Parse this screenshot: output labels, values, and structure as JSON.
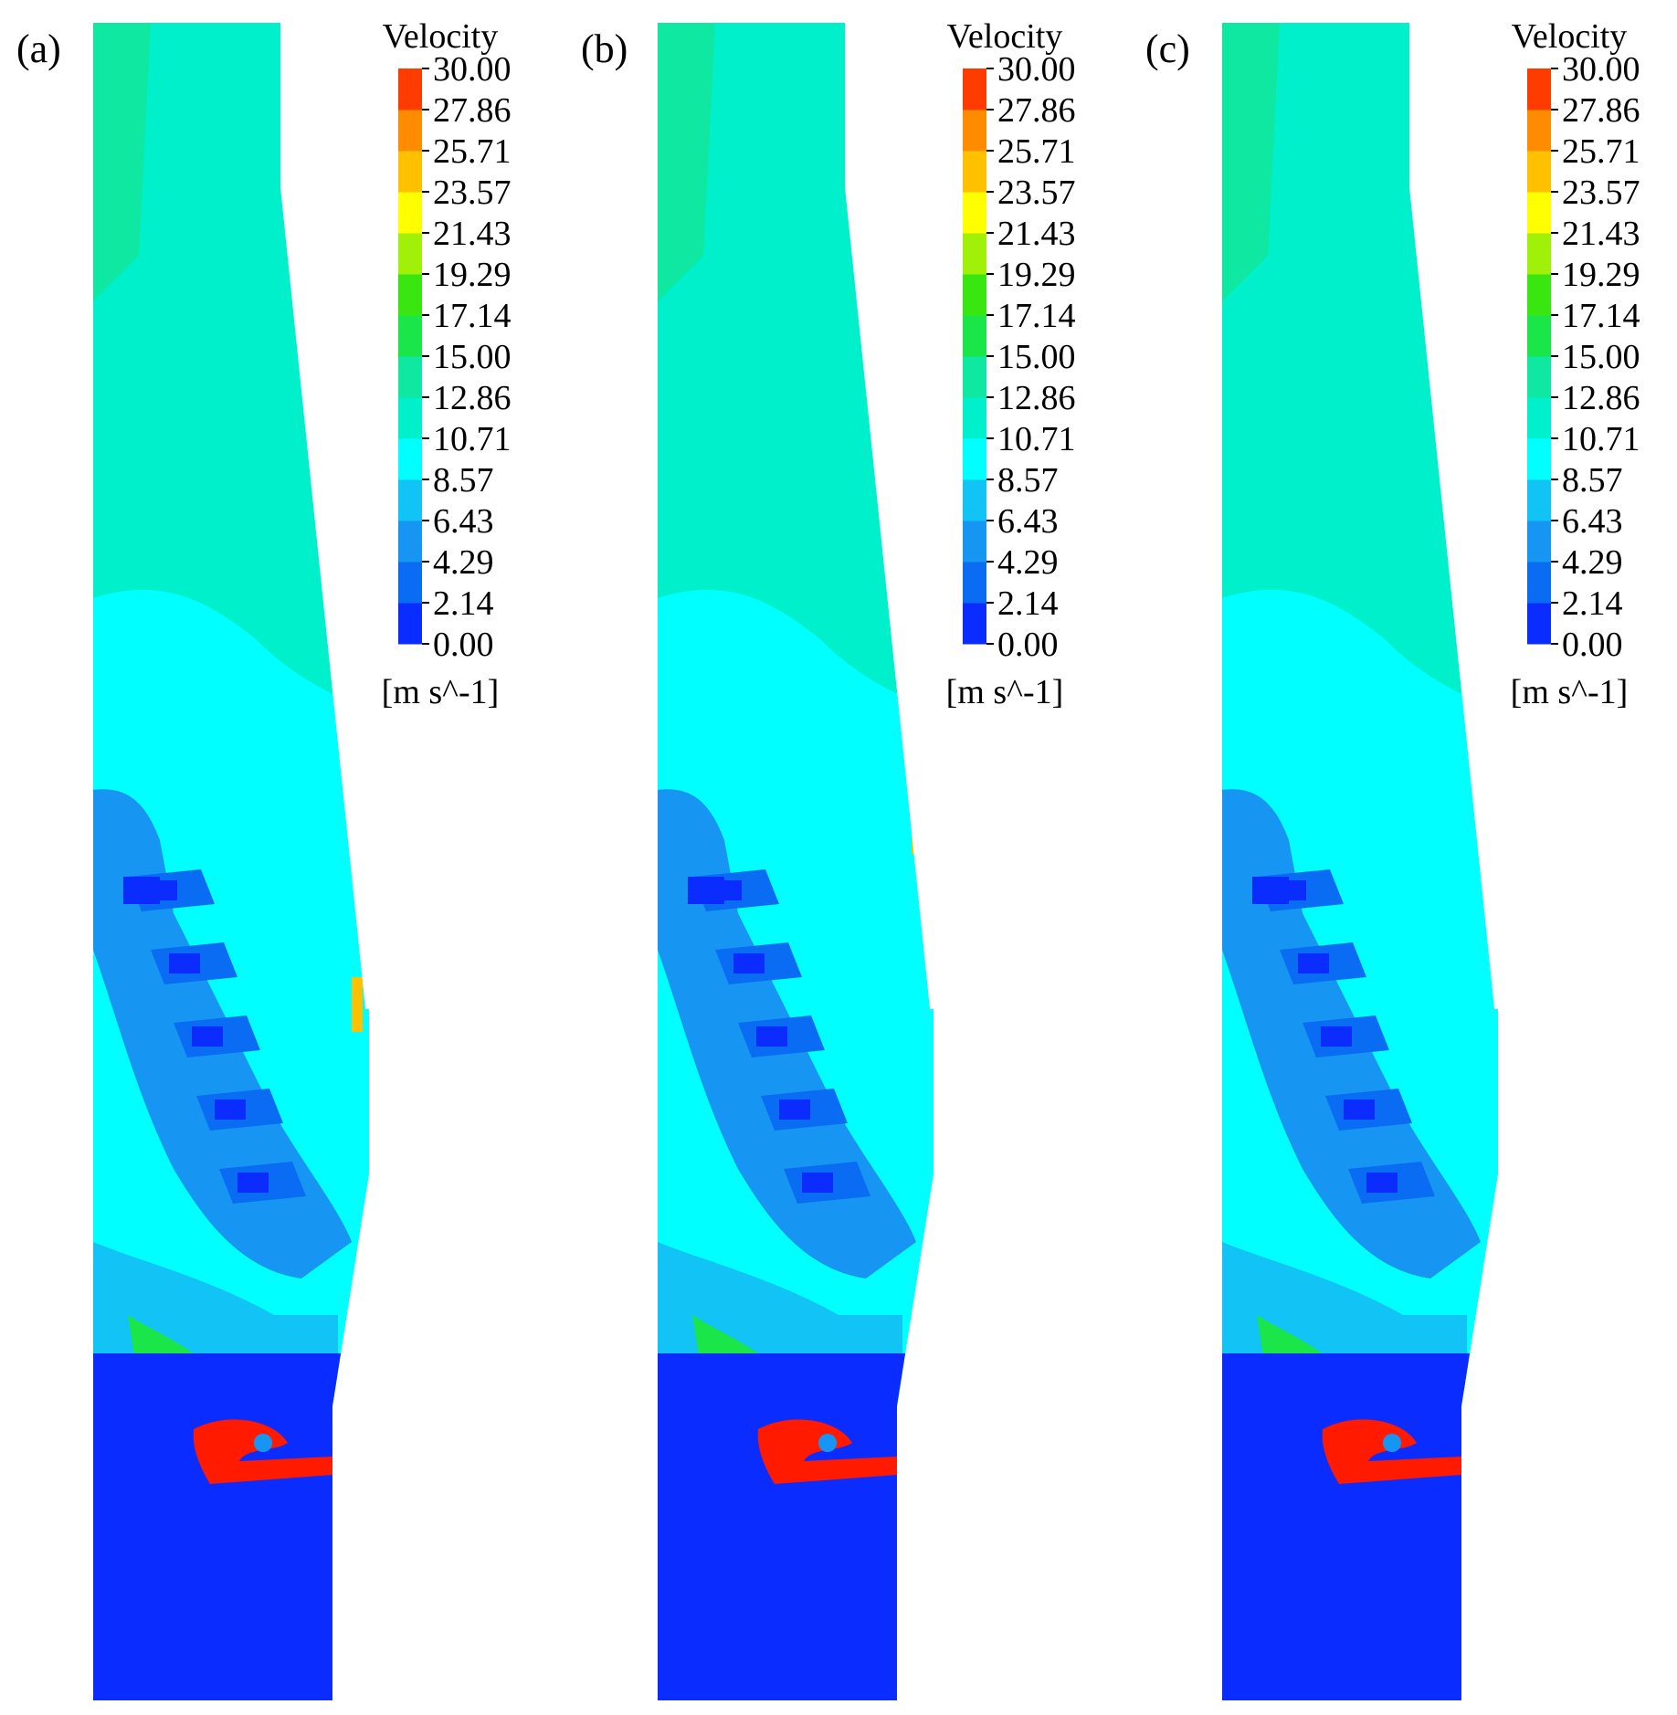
{
  "legend": {
    "title": "Velocity",
    "unit": "[m s^-1]",
    "ticks": [
      "30.00",
      "27.86",
      "25.71",
      "23.57",
      "21.43",
      "19.29",
      "17.14",
      "15.00",
      "12.86",
      "10.71",
      "8.57",
      "6.43",
      "4.29",
      "2.14",
      "0.00"
    ],
    "colors_bottom_to_top": [
      "#0a2cff",
      "#0a6cf2",
      "#1696f2",
      "#12c4f5",
      "#00ffff",
      "#00f0cc",
      "#0ee8a0",
      "#1ae64a",
      "#39e60f",
      "#a0f00a",
      "#ffff00",
      "#ffc000",
      "#ff8c00",
      "#ff3c00"
    ]
  },
  "panels": [
    {
      "label": "(a)"
    },
    {
      "label": "(b)"
    },
    {
      "label": "(c)"
    }
  ],
  "colors": {
    "background": "#ffffff",
    "fluid_base": "#00f0cc",
    "cyan_zone": "#00ffff",
    "medium_blue": "#1696f2",
    "dark_blue": "#0a2cff",
    "upper_green": "#0ee8a0",
    "hot_red": "#ff1a00"
  }
}
